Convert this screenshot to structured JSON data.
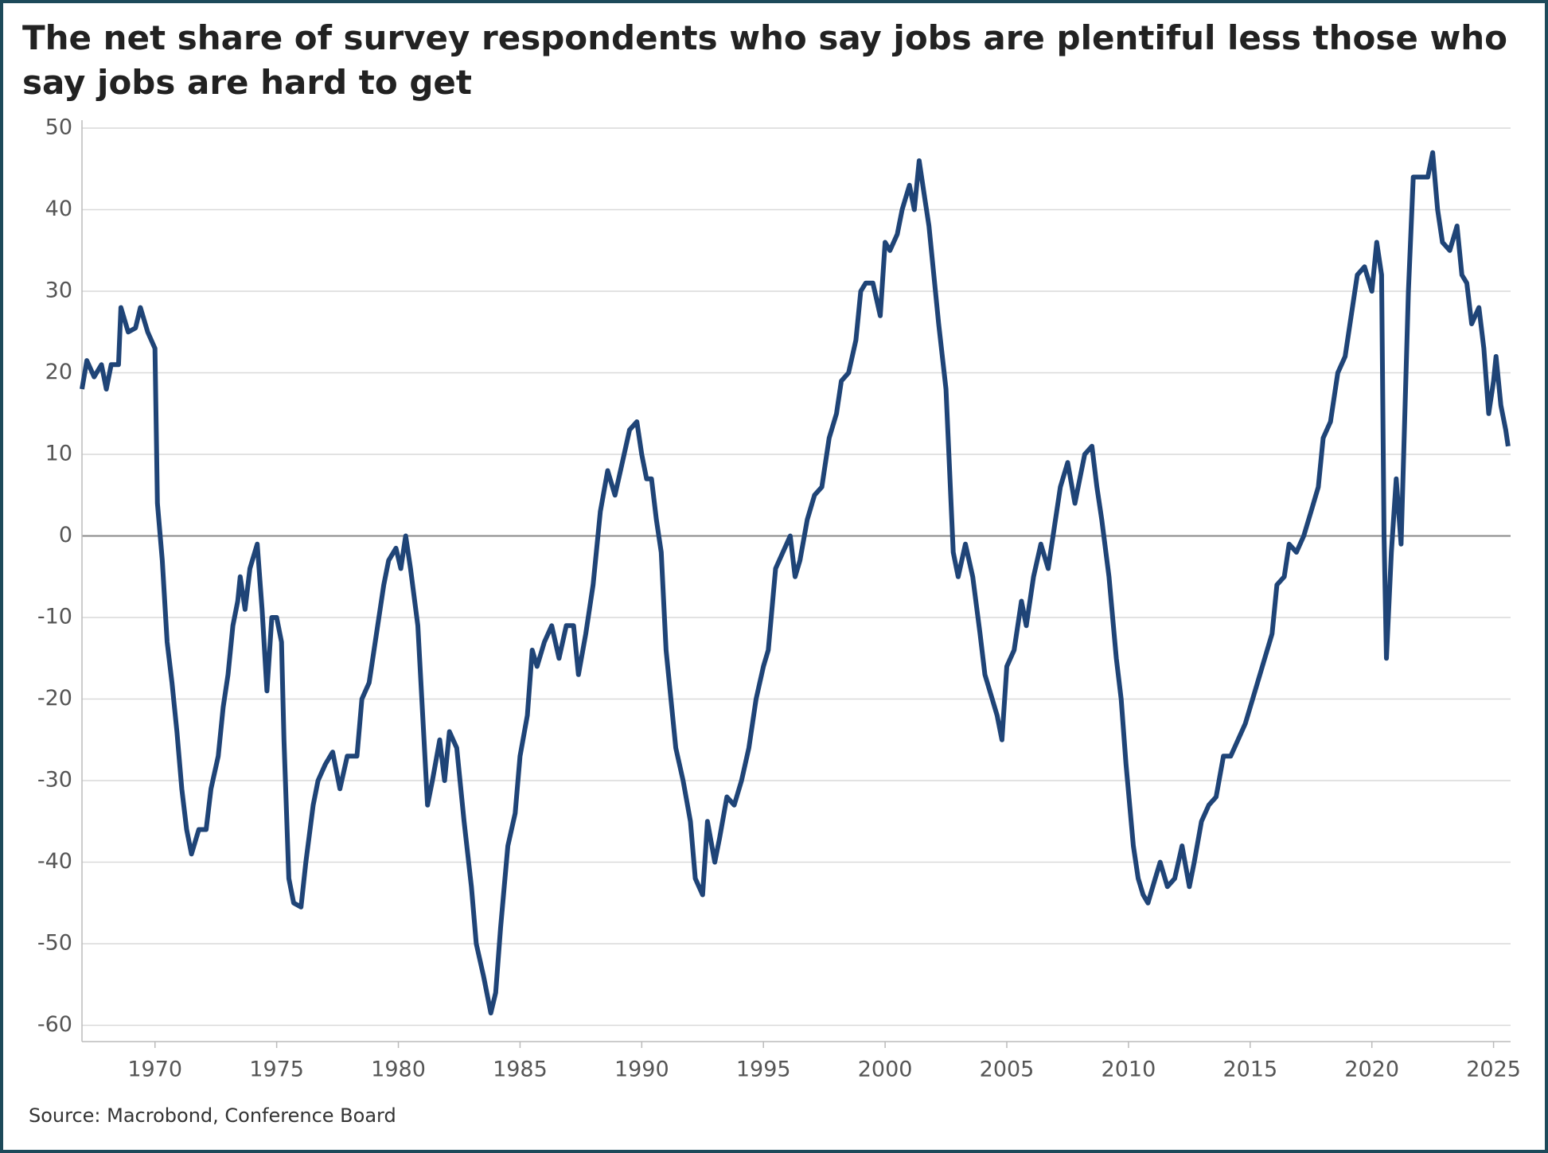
{
  "chart_data": {
    "type": "line",
    "title": "The net share of survey respondents who say jobs are plentiful less those who say jobs are hard to get",
    "source": "Source: Macrobond, Conference Board",
    "x": [
      1967.0,
      1967.2,
      1967.5,
      1967.8,
      1968.0,
      1968.2,
      1968.5,
      1968.6,
      1968.9,
      1969.2,
      1969.4,
      1969.7,
      1970.0,
      1970.1,
      1970.3,
      1970.5,
      1970.7,
      1970.9,
      1971.1,
      1971.3,
      1971.5,
      1971.8,
      1972.1,
      1972.3,
      1972.6,
      1972.8,
      1973.0,
      1973.2,
      1973.4,
      1973.5,
      1973.7,
      1973.9,
      1974.2,
      1974.4,
      1974.6,
      1974.8,
      1975.0,
      1975.2,
      1975.3,
      1975.5,
      1975.7,
      1976.0,
      1976.2,
      1976.5,
      1976.7,
      1977.0,
      1977.3,
      1977.6,
      1977.9,
      1978.3,
      1978.5,
      1978.8,
      1979.1,
      1979.4,
      1979.6,
      1979.9,
      1980.1,
      1980.3,
      1980.5,
      1980.8,
      1981.0,
      1981.2,
      1981.4,
      1981.7,
      1981.9,
      1982.1,
      1982.4,
      1982.7,
      1983.0,
      1983.2,
      1983.5,
      1983.8,
      1984.0,
      1984.2,
      1984.5,
      1984.8,
      1985.0,
      1985.3,
      1985.5,
      1985.7,
      1986.0,
      1986.3,
      1986.6,
      1986.9,
      1987.2,
      1987.4,
      1987.7,
      1988.0,
      1988.3,
      1988.6,
      1988.9,
      1989.2,
      1989.5,
      1989.8,
      1990.0,
      1990.2,
      1990.4,
      1990.6,
      1990.8,
      1991.0,
      1991.2,
      1991.4,
      1991.7,
      1992.0,
      1992.2,
      1992.5,
      1992.7,
      1993.0,
      1993.2,
      1993.5,
      1993.8,
      1994.1,
      1994.4,
      1994.7,
      1995.0,
      1995.2,
      1995.5,
      1995.8,
      1996.1,
      1996.3,
      1996.5,
      1996.8,
      1997.1,
      1997.4,
      1997.7,
      1998.0,
      1998.2,
      1998.5,
      1998.8,
      1999.0,
      1999.2,
      1999.5,
      1999.8,
      2000.0,
      2000.2,
      2000.5,
      2000.7,
      2001.0,
      2001.2,
      2001.4,
      2001.6,
      2001.8,
      2002.0,
      2002.2,
      2002.5,
      2002.8,
      2003.0,
      2003.3,
      2003.6,
      2003.9,
      2004.1,
      2004.4,
      2004.6,
      2004.8,
      2005.0,
      2005.3,
      2005.6,
      2005.8,
      2006.1,
      2006.4,
      2006.7,
      2006.9,
      2007.2,
      2007.5,
      2007.8,
      2008.0,
      2008.2,
      2008.5,
      2008.7,
      2008.9,
      2009.2,
      2009.5,
      2009.7,
      2009.9,
      2010.2,
      2010.4,
      2010.6,
      2010.8,
      2011.1,
      2011.3,
      2011.6,
      2011.9,
      2012.2,
      2012.5,
      2012.7,
      2013.0,
      2013.3,
      2013.6,
      2013.9,
      2014.2,
      2014.5,
      2014.8,
      2015.1,
      2015.3,
      2015.6,
      2015.9,
      2016.1,
      2016.4,
      2016.6,
      2016.9,
      2017.2,
      2017.5,
      2017.8,
      2018.0,
      2018.3,
      2018.6,
      2018.9,
      2019.1,
      2019.4,
      2019.7,
      2020.0,
      2020.2,
      2020.4,
      2020.5,
      2020.6,
      2020.8,
      2021.0,
      2021.2,
      2021.5,
      2021.7,
      2022.0,
      2022.3,
      2022.5,
      2022.7,
      2022.9,
      2023.2,
      2023.5,
      2023.7,
      2023.9,
      2024.1,
      2024.4,
      2024.6,
      2024.8,
      2025.0,
      2025.1,
      2025.3,
      2025.5,
      2025.6
    ],
    "series": [
      {
        "color": "#1f4477",
        "values": [
          18,
          21.5,
          19.5,
          21,
          18,
          21,
          21,
          28,
          25,
          25.5,
          28,
          25,
          23,
          4,
          -3,
          -13,
          -18,
          -24,
          -31,
          -36,
          -39,
          -36,
          -36,
          -31,
          -27,
          -21,
          -17,
          -11,
          -8,
          -5,
          -9,
          -4,
          -1,
          -9,
          -19,
          -10,
          -10,
          -13,
          -25,
          -42,
          -45,
          -45.5,
          -40,
          -33,
          -30,
          -28,
          -26.5,
          -31,
          -27,
          -27,
          -20,
          -18,
          -12,
          -6,
          -3,
          -1.5,
          -4,
          0,
          -4,
          -11,
          -22,
          -33,
          -30,
          -25,
          -30,
          -24,
          -26,
          -35,
          -43,
          -50,
          -54,
          -58.5,
          -56,
          -48,
          -38,
          -34,
          -27,
          -22,
          -14,
          -16,
          -13,
          -11,
          -15,
          -11,
          -11,
          -17,
          -12,
          -6,
          3,
          8,
          5,
          9,
          13,
          14,
          10,
          7,
          7,
          2,
          -2,
          -14,
          -20,
          -26,
          -30,
          -35,
          -42,
          -44,
          -35,
          -40,
          -37,
          -32,
          -33,
          -30,
          -26,
          -20,
          -16,
          -14,
          -4,
          -2,
          0,
          -5,
          -3,
          2,
          5,
          6,
          12,
          15,
          19,
          20,
          24,
          30,
          31,
          31,
          27,
          36,
          35,
          37,
          40,
          43,
          40,
          46,
          42,
          38,
          32,
          26,
          18,
          -2,
          -5,
          -1,
          -5,
          -12,
          -17,
          -20,
          -22,
          -25,
          -16,
          -14,
          -8,
          -11,
          -5,
          -1,
          -4,
          0,
          6,
          9,
          4,
          7,
          10,
          11,
          6,
          2,
          -5,
          -15,
          -20,
          -28,
          -38,
          -42,
          -44,
          -45,
          -42,
          -40,
          -43,
          -42,
          -38,
          -43,
          -40,
          -35,
          -33,
          -32,
          -27,
          -27,
          -25,
          -23,
          -20,
          -18,
          -15,
          -12,
          -6,
          -5,
          -1,
          -2,
          0,
          3,
          6,
          12,
          14,
          20,
          22,
          26,
          32,
          33,
          30,
          36,
          32,
          0,
          -15,
          -2,
          7,
          -1,
          30,
          44,
          44,
          44,
          47,
          40,
          36,
          35,
          38,
          32,
          31,
          26,
          28,
          23,
          15,
          19,
          22,
          16,
          13,
          11
        ]
      }
    ],
    "xlim": [
      1967,
      2025.7
    ],
    "ylim": [
      -62,
      50
    ],
    "xticks": [
      1970,
      1975,
      1980,
      1985,
      1990,
      1995,
      2000,
      2005,
      2010,
      2015,
      2020,
      2025
    ],
    "yticks": [
      -60,
      -50,
      -40,
      -30,
      -20,
      -10,
      0,
      10,
      20,
      30,
      40,
      50
    ],
    "grid": true
  }
}
